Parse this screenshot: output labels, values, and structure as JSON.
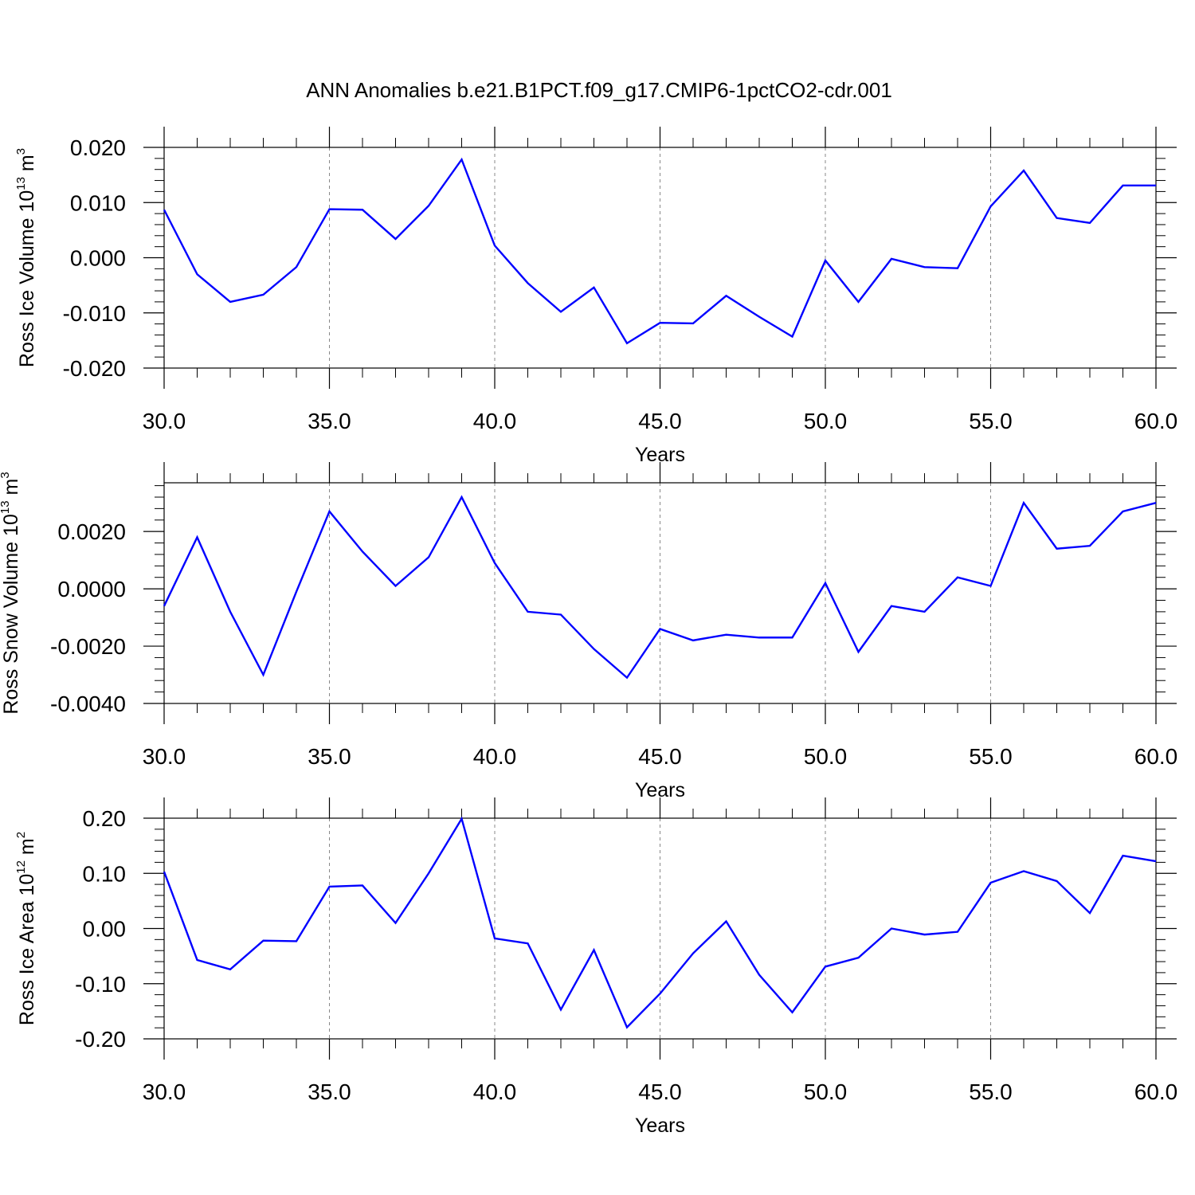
{
  "title": "ANN Anomalies b.e21.B1PCT.f09_g17.CMIP6-1pctCO2-cdr.001",
  "line_color": "#0000ff",
  "chart_data": [
    {
      "type": "line",
      "xlabel": "Years",
      "ylabel": "Ross Ice Volume 10",
      "ylabel_exp": "13",
      "ylabel_unit": "m",
      "ylabel_unit_exp": "3",
      "xlim": [
        30,
        60
      ],
      "ylim": [
        -0.02,
        0.02
      ],
      "xticks": [
        "30.0",
        "35.0",
        "40.0",
        "45.0",
        "50.0",
        "55.0",
        "60.0"
      ],
      "yticks": [
        "0.020",
        "0.010",
        "0.000",
        "-0.010",
        "-0.020"
      ],
      "x": [
        30,
        31,
        32,
        33,
        34,
        35,
        36,
        37,
        38,
        39,
        40,
        41,
        42,
        43,
        44,
        45,
        46,
        47,
        48,
        49,
        50,
        51,
        52,
        53,
        54,
        55,
        56,
        57,
        58,
        59,
        60
      ],
      "series": [
        {
          "values": [
            0.0087,
            -0.003,
            -0.008,
            -0.0067,
            -0.0017,
            0.0088,
            0.0087,
            0.0034,
            0.0094,
            0.0178,
            0.0022,
            -0.0046,
            -0.0098,
            -0.0054,
            -0.0155,
            -0.0118,
            -0.0119,
            -0.0069,
            -0.0107,
            -0.0143,
            -0.0005,
            -0.008,
            -0.0002,
            -0.0017,
            -0.0019,
            0.0093,
            0.0158,
            0.0072,
            0.0063,
            0.0131,
            0.0131
          ]
        }
      ]
    },
    {
      "type": "line",
      "xlabel": "Years",
      "ylabel": "Ross Snow Volume 10",
      "ylabel_exp": "13",
      "ylabel_unit": "m",
      "ylabel_unit_exp": "3",
      "xlim": [
        30,
        60
      ],
      "ylim": [
        -0.004,
        0.0037
      ],
      "xticks": [
        "30.0",
        "35.0",
        "40.0",
        "45.0",
        "50.0",
        "55.0",
        "60.0"
      ],
      "yticks": [
        "0.0020",
        "0.0000",
        "-0.0020",
        "-0.0040"
      ],
      "x": [
        30,
        31,
        32,
        33,
        34,
        35,
        36,
        37,
        38,
        39,
        40,
        41,
        42,
        43,
        44,
        45,
        46,
        47,
        48,
        49,
        50,
        51,
        52,
        53,
        54,
        55,
        56,
        57,
        58,
        59,
        60
      ],
      "series": [
        {
          "values": [
            -0.0006,
            0.0018,
            -0.0008,
            -0.003,
            -0.0001,
            0.0027,
            0.0013,
            0.0001,
            0.0011,
            0.0032,
            0.0009,
            -0.0008,
            -0.0009,
            -0.0021,
            -0.0031,
            -0.0014,
            -0.0018,
            -0.0016,
            -0.0017,
            -0.0017,
            0.0002,
            -0.0022,
            -0.0006,
            -0.0008,
            0.0004,
            0.0001,
            0.003,
            0.0014,
            0.0015,
            0.0027,
            0.003
          ]
        }
      ]
    },
    {
      "type": "line",
      "xlabel": "Years",
      "ylabel": "Ross Ice Area 10",
      "ylabel_exp": "12",
      "ylabel_unit": "m",
      "ylabel_unit_exp": "2",
      "xlim": [
        30,
        60
      ],
      "ylim": [
        -0.2,
        0.2
      ],
      "xticks": [
        "30.0",
        "35.0",
        "40.0",
        "45.0",
        "50.0",
        "55.0",
        "60.0"
      ],
      "yticks": [
        "0.20",
        "0.10",
        "0.00",
        "-0.10",
        "-0.20"
      ],
      "x": [
        30,
        31,
        32,
        33,
        34,
        35,
        36,
        37,
        38,
        39,
        40,
        41,
        42,
        43,
        44,
        45,
        46,
        47,
        48,
        49,
        50,
        51,
        52,
        53,
        54,
        55,
        56,
        57,
        58,
        59,
        60
      ],
      "series": [
        {
          "values": [
            0.103,
            -0.057,
            -0.074,
            -0.022,
            -0.023,
            0.076,
            0.078,
            0.01,
            0.1,
            0.199,
            -0.018,
            -0.027,
            -0.147,
            -0.039,
            -0.179,
            -0.118,
            -0.045,
            0.013,
            -0.084,
            -0.152,
            -0.069,
            -0.053,
            0.0,
            -0.011,
            -0.006,
            0.083,
            0.104,
            0.086,
            0.028,
            0.132,
            0.122
          ]
        }
      ]
    }
  ]
}
